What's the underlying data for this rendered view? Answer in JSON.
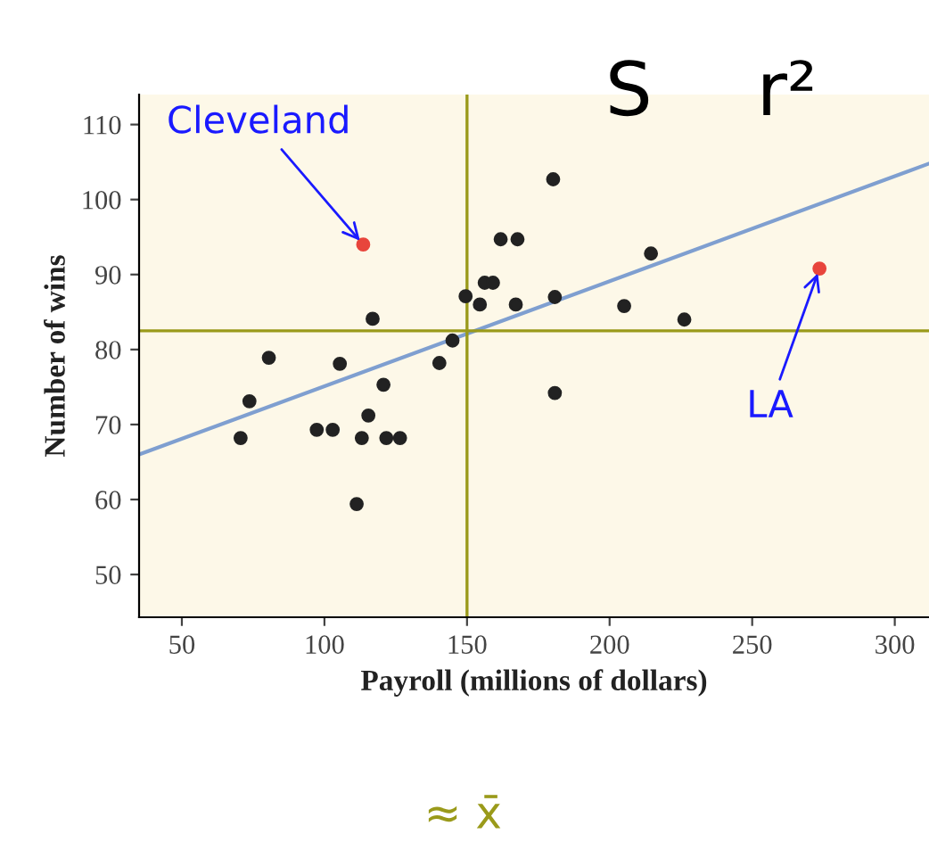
{
  "chart_data": {
    "type": "scatter",
    "xlabel": "Payroll (millions of dollars)",
    "ylabel": "Number of wins",
    "xlim": [
      35,
      312
    ],
    "ylim": [
      44.3,
      114
    ],
    "xticks": [
      50,
      100,
      150,
      200,
      250,
      300
    ],
    "yticks": [
      50,
      60,
      70,
      80,
      90,
      100,
      110
    ],
    "grid": false,
    "marker": "circle",
    "series": [
      {
        "color": "#222222",
        "x": [
          70.6,
          73.7,
          80.5,
          97.3,
          102.9,
          105.4,
          111.3,
          113.1,
          116.9,
          115.4,
          120.7,
          121.7,
          126.5,
          140.3,
          144.9,
          149.5,
          154.5,
          156.2,
          159.1,
          161.8,
          167.7,
          167.1,
          180.2,
          180.8,
          180.8,
          205.1,
          214.5,
          226.2
        ],
        "values": [
          68.2,
          73.1,
          78.9,
          69.3,
          69.3,
          78.1,
          59.4,
          68.2,
          84.1,
          71.2,
          75.3,
          68.2,
          68.2,
          78.2,
          81.2,
          87.1,
          86.0,
          88.9,
          88.9,
          94.7,
          94.7,
          86.0,
          102.7,
          87.0,
          74.2,
          85.8,
          92.8,
          84.0
        ]
      },
      {
        "color": "#e8453c",
        "x": [
          113.6,
          273.6
        ],
        "values": [
          94.0,
          90.8
        ]
      },
      {
        "type": "line",
        "marker": "none",
        "color": "#7f9fd0",
        "x": [
          35,
          312
        ],
        "values": [
          66.0,
          104.8
        ]
      }
    ],
    "ref_lines": [
      {
        "axis": "x",
        "value": 150,
        "color": "#9a9a1a"
      },
      {
        "axis": "y",
        "value": 82.5,
        "color": "#9a9a1a"
      }
    ],
    "annotations": [
      {
        "text": "Cleveland",
        "x": 113.6,
        "y": 94.0
      },
      {
        "text": "LA",
        "x": 273.6,
        "y": 90.8
      },
      "S",
      "r²",
      "≈ x̄"
    ]
  }
}
